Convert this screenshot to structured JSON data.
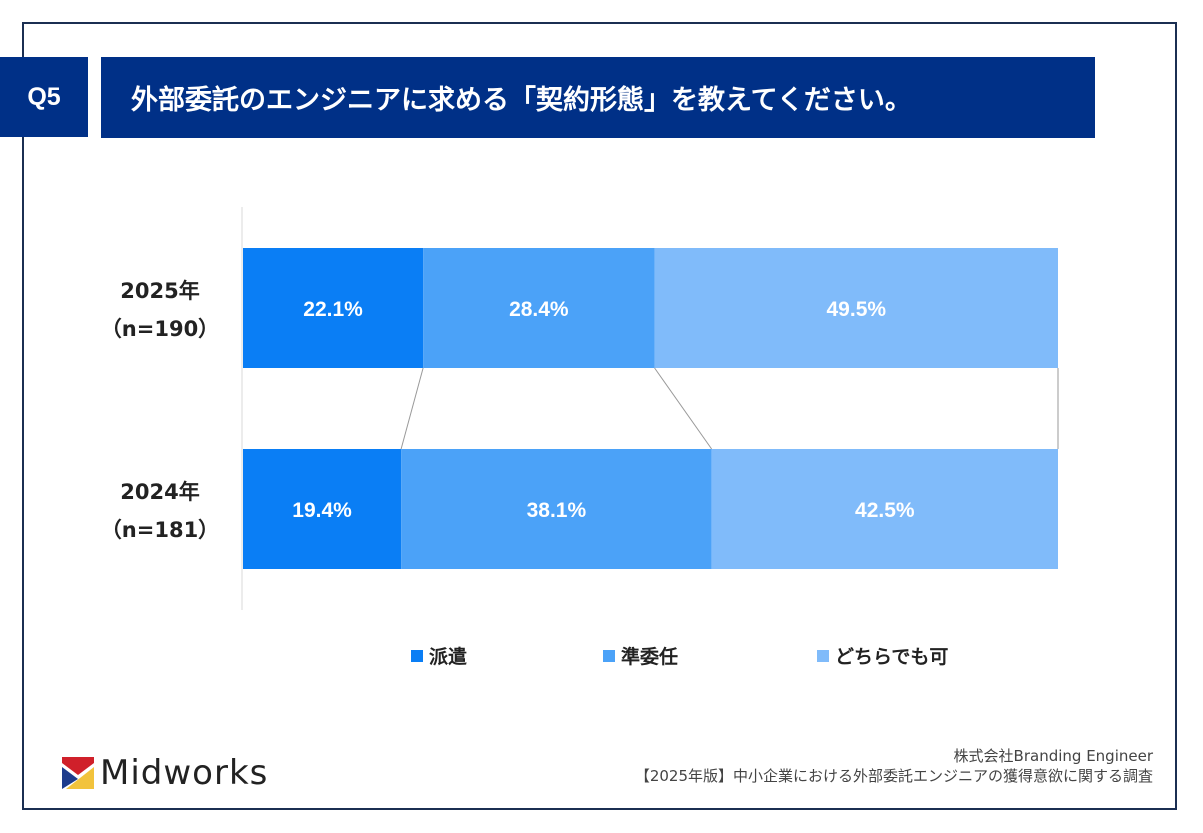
{
  "header": {
    "question_no": "Q5",
    "title": "外部委託のエンジニアに求める「契約形態」を教えてください。"
  },
  "chart_data": {
    "type": "bar",
    "orientation": "horizontal",
    "stacked": "100%",
    "categories": [
      "2025年\n（n=190）",
      "2024年\n（n=181）"
    ],
    "category_lines": [
      [
        "2025年",
        "（n=190）"
      ],
      [
        "2024年",
        "（n=181）"
      ]
    ],
    "series": [
      {
        "name": "派遣",
        "values": [
          22.1,
          19.4
        ],
        "color": "#0a7ef5"
      },
      {
        "name": "準委任",
        "values": [
          28.4,
          38.1
        ],
        "color": "#4ba2f8"
      },
      {
        "name": "どちらでも可",
        "values": [
          49.5,
          42.5
        ],
        "color": "#80bbfa"
      }
    ],
    "value_suffix": "%",
    "xlim": [
      0,
      100
    ],
    "legend_position": "bottom",
    "connector_lines": true,
    "grid": false
  },
  "footer": {
    "logo_text": "Midworks",
    "company": "株式会社Branding Engineer",
    "survey": "【2025年版】中小企業における外部委託エンジニアの獲得意欲に関する調査"
  }
}
